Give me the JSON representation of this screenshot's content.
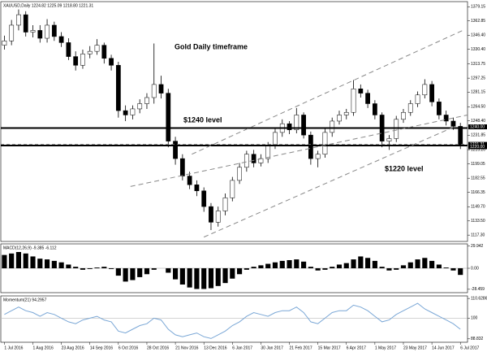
{
  "chart_data": [
    {
      "type": "candlestick",
      "title": "XAUUSD,Daily 1224.82 1225.09 1218.80 1221.31",
      "annotations": [
        "Gold Daily timeframe",
        "$1240 level",
        "$1220 level"
      ],
      "open": [
        1335,
        1340,
        1358,
        1370,
        1350,
        1352,
        1343,
        1358,
        1345,
        1338,
        1322,
        1312,
        1325,
        1328,
        1335,
        1320,
        1312,
        1260,
        1255,
        1262,
        1268,
        1275,
        1290,
        1280,
        1225,
        1205,
        1185,
        1175,
        1168,
        1150,
        1132,
        1145,
        1160,
        1180,
        1195,
        1210,
        1200,
        1205,
        1220,
        1235,
        1245,
        1238,
        1255,
        1232,
        1205,
        1210,
        1235,
        1248,
        1255,
        1258,
        1285,
        1280,
        1268,
        1255,
        1225,
        1228,
        1250,
        1258,
        1268,
        1278,
        1290,
        1270,
        1255,
        1248,
        1242
      ],
      "high": [
        1346,
        1364,
        1376,
        1374,
        1358,
        1358,
        1365,
        1362,
        1350,
        1343,
        1328,
        1330,
        1334,
        1342,
        1338,
        1324,
        1316,
        1266,
        1266,
        1273,
        1280,
        1337,
        1300,
        1285,
        1230,
        1210,
        1190,
        1180,
        1172,
        1154,
        1150,
        1165,
        1184,
        1200,
        1214,
        1215,
        1210,
        1224,
        1240,
        1250,
        1248,
        1263,
        1258,
        1236,
        1214,
        1240,
        1252,
        1260,
        1262,
        1295,
        1290,
        1284,
        1272,
        1258,
        1232,
        1254,
        1262,
        1272,
        1282,
        1296,
        1294,
        1274,
        1260,
        1252,
        1246
      ],
      "low": [
        1330,
        1335,
        1352,
        1345,
        1344,
        1338,
        1338,
        1340,
        1333,
        1318,
        1306,
        1308,
        1320,
        1324,
        1314,
        1306,
        1252,
        1248,
        1250,
        1257,
        1262,
        1268,
        1274,
        1218,
        1198,
        1180,
        1170,
        1162,
        1144,
        1123,
        1127,
        1140,
        1156,
        1176,
        1190,
        1195,
        1196,
        1200,
        1216,
        1230,
        1233,
        1234,
        1228,
        1198,
        1195,
        1206,
        1230,
        1244,
        1250,
        1254,
        1275,
        1263,
        1250,
        1218,
        1215,
        1224,
        1246,
        1254,
        1264,
        1274,
        1265,
        1250,
        1243,
        1238,
        1216
      ],
      "close": [
        1340,
        1358,
        1370,
        1350,
        1352,
        1343,
        1358,
        1345,
        1338,
        1322,
        1312,
        1325,
        1328,
        1335,
        1320,
        1312,
        1260,
        1255,
        1262,
        1268,
        1275,
        1290,
        1280,
        1225,
        1205,
        1185,
        1175,
        1168,
        1150,
        1132,
        1145,
        1160,
        1180,
        1195,
        1210,
        1200,
        1205,
        1220,
        1235,
        1245,
        1238,
        1255,
        1232,
        1205,
        1210,
        1235,
        1248,
        1255,
        1258,
        1285,
        1280,
        1268,
        1255,
        1225,
        1228,
        1250,
        1258,
        1268,
        1278,
        1290,
        1270,
        1255,
        1248,
        1242,
        1221
      ],
      "up_color": "#ffffff",
      "down_color": "#000000",
      "ylim": [
        1110,
        1385
      ],
      "yticks": [
        1379.15,
        1362.85,
        {
          "value": 1346.4,
          "label": "1346.40"
        },
        {
          "value": 1330.4,
          "label": "1330.40"
        },
        1313.75,
        1297.25,
        1281.15,
        {
          "value": 1264.5,
          "label": "1264.50"
        },
        {
          "value": 1248.4,
          "label": "1248.40"
        },
        1231.85,
        {
          "value": 1215.2,
          "label": "1215.20"
        },
        1199.05,
        1182.55,
        1166.35,
        {
          "value": 1149.7,
          "label": "1149.70"
        },
        {
          "value": 1133.5,
          "label": "1133.50"
        },
        {
          "value": 1117.3,
          "label": "1117.30"
        }
      ],
      "levels": [
        {
          "value": 1240,
          "label": "1240.00",
          "dash": false
        },
        {
          "value": 1221.31,
          "label": "1221.31",
          "dash": true
        },
        {
          "value": 1220,
          "label": "1220.00",
          "dash": false
        }
      ],
      "trendlines": [
        {
          "x": [
            26.3,
            64.6
          ],
          "y": [
            1210,
            1353
          ]
        },
        {
          "x": [
            17.7,
            65
          ],
          "y": [
            1173,
            1255
          ]
        },
        {
          "x": [
            28,
            63
          ],
          "y": [
            1115,
            1241
          ]
        }
      ]
    },
    {
      "type": "bar",
      "title": "MACD(12,26,9) -9.385 -6.112",
      "color": "#000000",
      "values": [
        18,
        20,
        22,
        20,
        16,
        13,
        12,
        10,
        8,
        5,
        2,
        -2,
        -1,
        1,
        2,
        -1,
        -10,
        -18,
        -16,
        -12,
        -8,
        -2,
        0,
        -6,
        -15,
        -22,
        -26,
        -28,
        -28,
        -27,
        -24,
        -20,
        -14,
        -8,
        -2,
        2,
        4,
        6,
        8,
        10,
        11,
        12,
        9,
        2,
        -3,
        -2,
        2,
        5,
        7,
        12,
        16,
        14,
        10,
        2,
        -3,
        -2,
        4,
        8,
        12,
        14,
        10,
        5,
        1,
        -3,
        -9
      ],
      "ylim": [
        -33,
        33
      ],
      "yticks": [
        29.942,
        {
          "value": 0,
          "label": "0.00"
        },
        -28.459
      ]
    },
    {
      "type": "line",
      "title": "Momentum(21) 94.2957",
      "color": "#7aa7d6",
      "values": [
        102,
        104,
        106,
        104,
        103,
        101,
        103,
        102,
        100,
        98,
        97,
        99,
        100,
        101,
        99,
        98,
        93,
        92,
        94,
        96,
        97,
        100,
        99,
        94,
        91,
        90,
        91,
        92,
        90,
        89,
        91,
        93,
        96,
        98,
        101,
        103,
        102,
        101,
        103,
        104,
        104,
        106,
        103,
        98,
        97,
        100,
        103,
        104,
        104,
        107,
        106,
        104,
        101,
        98,
        99,
        102,
        104,
        106,
        108,
        105,
        103,
        101,
        99,
        97,
        94
      ],
      "ylim": [
        87,
        112
      ],
      "yticks": [
        110.6286,
        100,
        88.832
      ],
      "xlim": [
        -0.5,
        65
      ],
      "xticks": [
        {
          "value": 0,
          "label": "1 Jul 2016"
        },
        {
          "value": 4,
          "label": "1 Aug 2016"
        },
        {
          "value": 8,
          "label": "23 Aug 2016"
        },
        {
          "value": 12,
          "label": "14 Sep 2016"
        },
        {
          "value": 16,
          "label": "6 Oct 2016"
        },
        {
          "value": 20,
          "label": "28 Oct 2016"
        },
        {
          "value": 24,
          "label": "21 Nov 2016"
        },
        {
          "value": 28,
          "label": "13 Dec 2016"
        },
        {
          "value": 32,
          "label": "6 Jan 2017"
        },
        {
          "value": 36,
          "label": "30 Jan 2017"
        },
        {
          "value": 40,
          "label": "21 Feb 2017"
        },
        {
          "value": 44,
          "label": "15 Mar 2017"
        },
        {
          "value": 48,
          "label": "6 Apr 2017"
        },
        {
          "value": 52,
          "label": "1 May 2017"
        },
        {
          "value": 56,
          "label": "23 May 2017"
        },
        {
          "value": 60,
          "label": "14 Jun 2017"
        },
        {
          "value": 64,
          "label": "6 Jul 2017"
        }
      ]
    }
  ]
}
